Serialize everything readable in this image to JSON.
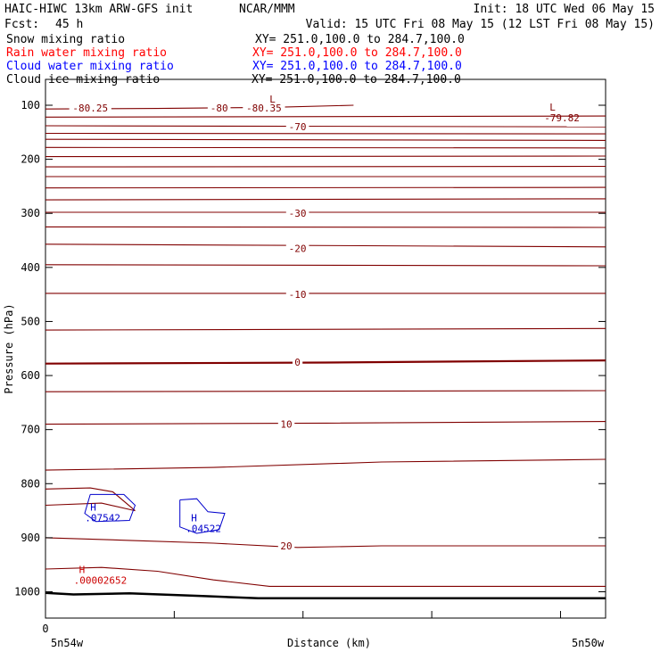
{
  "header": {
    "model": "HAIC-HIWC 13km ARW-GFS init",
    "center": "NCAR/MMM",
    "init": "Init: 18 UTC Wed 06 May 15",
    "fcst_label": "Fcst:",
    "fcst_value": "45 h",
    "valid": "Valid: 15 UTC Fri 08 May 15 (12 LST Fri 08 May 15)"
  },
  "legend": [
    {
      "name": "Snow mixing ratio",
      "xy": "XY= 251.0,100.0 to 284.7,100.0",
      "color": "#000000"
    },
    {
      "name": "Rain water mixing ratio",
      "xy": "XY= 251.0,100.0 to 284.7,100.0",
      "color": "#ff0000"
    },
    {
      "name": "Cloud water mixing ratio",
      "xy": "XY= 251.0,100.0 to 284.7,100.0",
      "color": "#0000ff"
    },
    {
      "name": "Cloud ice mixing ratio",
      "xy": "XY= 251.0,100.0 to 284.7,100.0",
      "color": "#000000"
    }
  ],
  "chart_data": {
    "type": "line",
    "description_type": "cross-section",
    "ylabel": "Pressure (hPa)",
    "xlabel": "Distance (km)",
    "y_ticks": [
      100,
      200,
      300,
      400,
      500,
      600,
      700,
      800,
      900,
      1000
    ],
    "ylim": [
      1050,
      50
    ],
    "y_reversed": true,
    "x_tick_labels": [
      "0"
    ],
    "x_endpoints": [
      "5n54w",
      "5n50w"
    ],
    "xlim": [
      0,
      100
    ],
    "colors": {
      "temperature": "#800000",
      "cloud_water": "#0000cc",
      "rain": "#cc0000",
      "terrain": "#000000",
      "axis": "#000000"
    },
    "temperature_contour_labels": [
      {
        "text": "-80.25",
        "x": 8,
        "p": 105
      },
      {
        "text": "-80",
        "x": 31,
        "p": 105
      },
      {
        "text": "-80.35",
        "x": 39,
        "p": 105
      },
      {
        "text": "-70",
        "x": 45,
        "p": 140
      },
      {
        "text": "-30",
        "x": 45,
        "p": 300
      },
      {
        "text": "-20",
        "x": 45,
        "p": 365
      },
      {
        "text": "-10",
        "x": 45,
        "p": 450
      },
      {
        "text": "0",
        "x": 45,
        "p": 575
      },
      {
        "text": "10",
        "x": 43,
        "p": 690
      },
      {
        "text": "20",
        "x": 43,
        "p": 915
      }
    ],
    "temperature_contours": [
      {
        "x": [
          0,
          20,
          40,
          55
        ],
        "p": [
          107,
          106,
          104,
          100
        ]
      },
      {
        "x": [
          0,
          100
        ],
        "p": [
          122,
          120
        ]
      },
      {
        "x": [
          0,
          100
        ],
        "p": [
          138,
          140
        ]
      },
      {
        "x": [
          0,
          100
        ],
        "p": [
          152,
          153
        ]
      },
      {
        "x": [
          0,
          100
        ],
        "p": [
          163,
          165
        ]
      },
      {
        "x": [
          0,
          100
        ],
        "p": [
          178,
          179
        ]
      },
      {
        "x": [
          0,
          100
        ],
        "p": [
          195,
          194
        ]
      },
      {
        "x": [
          0,
          100
        ],
        "p": [
          214,
          213
        ]
      },
      {
        "x": [
          0,
          100
        ],
        "p": [
          232,
          232
        ]
      },
      {
        "x": [
          0,
          100
        ],
        "p": [
          253,
          252
        ]
      },
      {
        "x": [
          0,
          100
        ],
        "p": [
          275,
          273
        ]
      },
      {
        "x": [
          0,
          100
        ],
        "p": [
          298,
          298
        ]
      },
      {
        "x": [
          0,
          100
        ],
        "p": [
          325,
          326
        ]
      },
      {
        "x": [
          0,
          100
        ],
        "p": [
          357,
          362
        ]
      },
      {
        "x": [
          0,
          100
        ],
        "p": [
          395,
          397
        ]
      },
      {
        "x": [
          0,
          100
        ],
        "p": [
          448,
          448
        ]
      },
      {
        "x": [
          0,
          100
        ],
        "p": [
          516,
          513
        ]
      },
      {
        "x": [
          0,
          50,
          100
        ],
        "p": [
          578,
          576,
          572
        ],
        "bold": true
      },
      {
        "x": [
          0,
          100
        ],
        "p": [
          630,
          628
        ]
      },
      {
        "x": [
          0,
          50,
          100
        ],
        "p": [
          690,
          688,
          685
        ]
      },
      {
        "x": [
          0,
          30,
          60,
          100
        ],
        "p": [
          775,
          770,
          760,
          755
        ]
      },
      {
        "x": [
          0,
          8,
          12,
          16
        ],
        "p": [
          810,
          808,
          815,
          850
        ]
      },
      {
        "x": [
          0,
          10,
          16
        ],
        "p": [
          840,
          836,
          850
        ]
      },
      {
        "x": [
          0,
          15,
          30,
          45,
          60,
          100
        ],
        "p": [
          900,
          905,
          910,
          918,
          915,
          915
        ]
      },
      {
        "x": [
          0,
          10,
          20,
          30,
          40,
          100
        ],
        "p": [
          958,
          955,
          962,
          978,
          990,
          990
        ]
      }
    ],
    "terrain": {
      "x": [
        0,
        5,
        15,
        28,
        38,
        100
      ],
      "p": [
        1002,
        1005,
        1003,
        1008,
        1012,
        1012
      ]
    },
    "cloud_water_contours": [
      {
        "x": [
          8,
          14,
          16,
          15,
          9,
          7,
          8
        ],
        "p": [
          820,
          820,
          840,
          868,
          870,
          855,
          820
        ]
      },
      {
        "x": [
          24,
          27,
          29,
          32,
          31,
          27,
          24,
          24
        ],
        "p": [
          830,
          828,
          852,
          855,
          885,
          892,
          880,
          830
        ]
      }
    ],
    "markers": [
      {
        "text": "H",
        "value": ".07542",
        "x": 8,
        "p": 850,
        "color": "#0000cc"
      },
      {
        "text": "H",
        "value": ".04522",
        "x": 26,
        "p": 870,
        "color": "#0000cc"
      },
      {
        "text": "H",
        "value": ".00002652",
        "x": 6,
        "p": 965,
        "color": "#cc0000"
      },
      {
        "text": "L",
        "value": "-79.82",
        "x": 90,
        "p": 110,
        "color": "#800000"
      },
      {
        "text": "L",
        "value": "",
        "x": 40,
        "p": 95,
        "color": "#800000"
      }
    ]
  }
}
